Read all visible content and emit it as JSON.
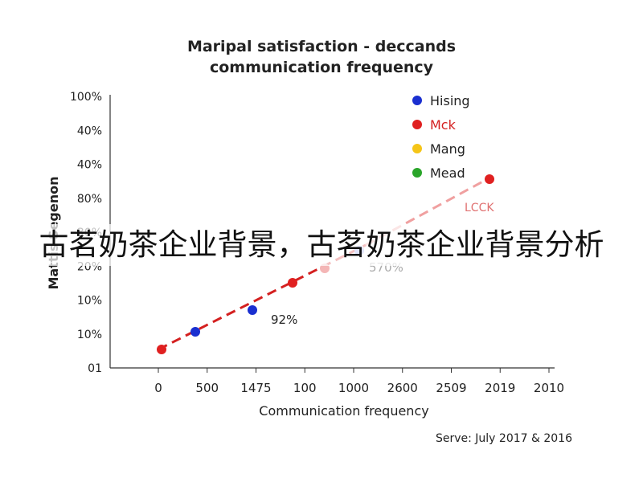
{
  "chart_data": {
    "type": "scatter",
    "title_line1": "Maripal satisfaction - deccands",
    "title_line2": "communication frequency",
    "xlabel": "Communication frequency",
    "ylabel": "Mattis Segenon",
    "x_ticks": [
      "0",
      "500",
      "1475",
      "100",
      "1000",
      "2600",
      "2509",
      "2019",
      "2010"
    ],
    "y_ticks": [
      "01",
      "10%",
      "10%",
      "20%",
      "30%",
      "80%",
      "40%",
      "40%",
      "100%"
    ],
    "series": [
      {
        "name": "Hising",
        "color": "#1a2fd0",
        "points": [
          {
            "x": "500",
            "y": "10%"
          },
          {
            "x": "1475",
            "y": "10%"
          }
        ]
      },
      {
        "name": "Mck",
        "color": "#e02020",
        "points": [
          {
            "x": "0",
            "y": "01"
          },
          {
            "x": "100",
            "y": "10%"
          },
          {
            "x": "2019",
            "y": "40%"
          }
        ]
      },
      {
        "name": "Mang",
        "color": "#f5c518",
        "points": []
      },
      {
        "name": "Mead",
        "color": "#2aa52a",
        "points": []
      }
    ],
    "trend_line": {
      "color": "#e02020",
      "style": "dashed",
      "label": "LCCK"
    },
    "annotations": [
      "92%",
      "570%"
    ],
    "source": "Serve: July 2017 & 2016"
  },
  "overlay_caption": "古茗奶茶企业背景，古茗奶茶企业背景分析"
}
